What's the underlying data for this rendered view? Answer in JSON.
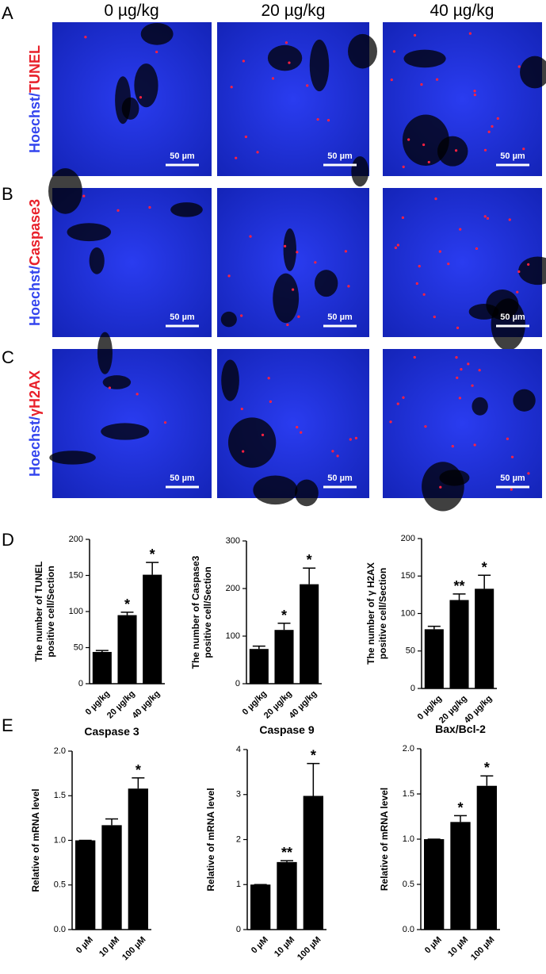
{
  "panel_labels": [
    "A",
    "B",
    "C",
    "D",
    "E"
  ],
  "columns": [
    "0 µg/kg",
    "20 µg/kg",
    "40 µg/kg"
  ],
  "rows": [
    {
      "stain": "Hoechst/",
      "marker": "TUNEL"
    },
    {
      "stain": "Hoechst/",
      "marker": "Caspase3"
    },
    {
      "stain": "Hoechst/",
      "marker": "γH2AX"
    }
  ],
  "scale_bar": "50 µm",
  "chart_data": [
    {
      "type": "bar",
      "ylabel": [
        "The number of TUNEL",
        "positive cell/Section"
      ],
      "categories": [
        "0 µg/kg",
        "20 µg/kg",
        "40 µg/kg"
      ],
      "values": [
        44,
        95,
        151
      ],
      "errors": [
        2,
        4,
        17
      ],
      "stars": [
        null,
        "*",
        "*"
      ],
      "color": "#000000",
      "ylim": [
        0,
        200
      ],
      "yticks": [
        0,
        50,
        100,
        150,
        200
      ]
    },
    {
      "type": "bar",
      "ylabel": [
        "The number of Caspase3",
        "positive cell/Section"
      ],
      "categories": [
        "0 µg/kg",
        "20 µg/kg",
        "40 µg/kg"
      ],
      "values": [
        73,
        113,
        209
      ],
      "errors": [
        6,
        14,
        34
      ],
      "stars": [
        null,
        "*",
        "*"
      ],
      "color": "#000000",
      "ylim": [
        0,
        300
      ],
      "yticks": [
        0,
        100,
        200,
        300
      ]
    },
    {
      "type": "bar",
      "ylabel": [
        "The number of γ H2AX",
        "positive cell/Section"
      ],
      "categories": [
        "0 µg/kg",
        "20 µg/kg",
        "40 µg/kg"
      ],
      "values": [
        79,
        118,
        133
      ],
      "errors": [
        4,
        8,
        18
      ],
      "stars": [
        null,
        "**",
        "*"
      ],
      "color": "#000000",
      "ylim": [
        0,
        200
      ],
      "yticks": [
        0,
        50,
        100,
        150,
        200
      ]
    },
    {
      "type": "bar",
      "title": "Caspase 3",
      "ylabel": [
        "Relative of mRNA level"
      ],
      "categories": [
        "0 µM",
        "10 µM",
        "100 µM"
      ],
      "values": [
        1.0,
        1.17,
        1.58
      ],
      "errors": [
        0,
        0.07,
        0.12
      ],
      "stars": [
        null,
        null,
        "*"
      ],
      "color": "#000000",
      "ylim": [
        0,
        2
      ],
      "yticks": [
        {
          "value": 0,
          "label": "0.0"
        },
        {
          "value": 0.5,
          "label": "0.5"
        },
        {
          "value": 1,
          "label": "1.0"
        },
        {
          "value": 1.5,
          "label": "1.5"
        },
        {
          "value": 2,
          "label": "2.0"
        }
      ]
    },
    {
      "type": "bar",
      "title": "Caspase 9",
      "ylabel": [
        "Relative of mRNA level"
      ],
      "categories": [
        "0 µM",
        "10 µM",
        "100 µM"
      ],
      "values": [
        1.0,
        1.5,
        2.97
      ],
      "errors": [
        0,
        0.03,
        0.72
      ],
      "stars": [
        null,
        "**",
        "*"
      ],
      "color": "#000000",
      "ylim": [
        0,
        4
      ],
      "yticks": [
        0,
        1,
        2,
        3,
        4
      ]
    },
    {
      "type": "bar",
      "title": "Bax/Bcl-2",
      "ylabel": [
        "Relative of mRNA level"
      ],
      "categories": [
        "0 µM",
        "10 µM",
        "100 µM"
      ],
      "values": [
        1.0,
        1.19,
        1.59
      ],
      "errors": [
        0,
        0.07,
        0.11
      ],
      "stars": [
        null,
        "*",
        "*"
      ],
      "color": "#000000",
      "ylim": [
        0,
        2
      ],
      "yticks": [
        {
          "value": 0,
          "label": "0.0"
        },
        {
          "value": 0.5,
          "label": "0.5"
        },
        {
          "value": 1,
          "label": "1.0"
        },
        {
          "value": 1.5,
          "label": "1.5"
        },
        {
          "value": 2,
          "label": "2.0"
        }
      ]
    }
  ]
}
